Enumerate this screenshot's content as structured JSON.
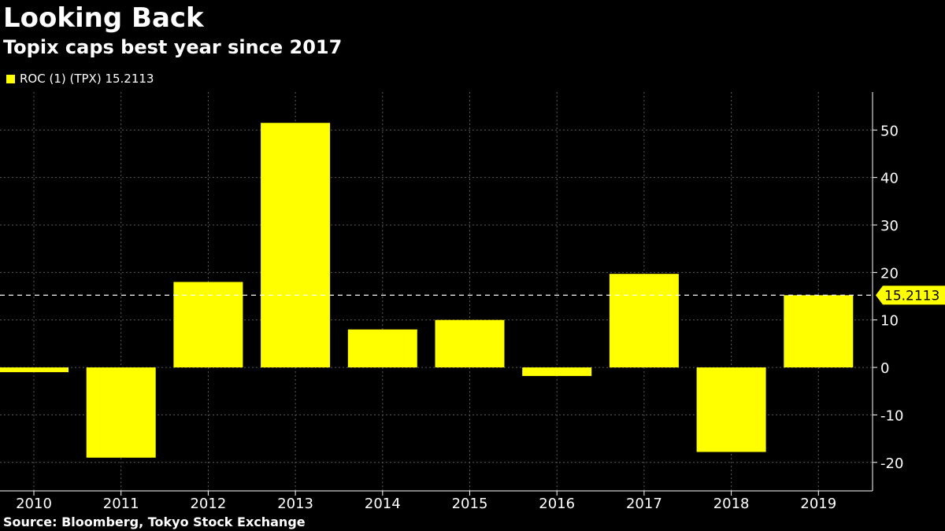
{
  "header": {
    "title": "Looking Back",
    "subtitle": "Topix caps best year since 2017"
  },
  "legend": {
    "label": "ROC (1) (TPX) 15.2113",
    "color": "#ffff00"
  },
  "footer": {
    "source": "Source: Bloomberg, Tokyo Stock Exchange"
  },
  "chart_data": {
    "type": "bar",
    "categories": [
      "2010",
      "2011",
      "2012",
      "2013",
      "2014",
      "2015",
      "2016",
      "2017",
      "2018",
      "2019"
    ],
    "values": [
      -1.0,
      -19.0,
      18.0,
      51.5,
      8.0,
      10.0,
      -1.8,
      19.7,
      -17.8,
      15.2113
    ],
    "series": [
      {
        "name": "ROC (1) (TPX)",
        "color": "#ffff00"
      }
    ],
    "title": "Looking Back",
    "subtitle": "Topix caps best year since 2017",
    "xlabel": "",
    "ylabel": "",
    "ylim": [
      -26,
      58
    ],
    "yticks": [
      -20,
      -10,
      0,
      10,
      20,
      30,
      40,
      50
    ],
    "ytick_labels": [
      "-20",
      "-10",
      "0",
      "10",
      "20",
      "30",
      "40",
      "50"
    ],
    "y_axis_position": "right",
    "grid": true,
    "last_value": 15.2113,
    "last_value_label": "15.2113",
    "reference_line": {
      "value": 15.2113,
      "style": "dashed",
      "color": "#ffffff"
    },
    "legend_position": "top-left",
    "background": "#000000",
    "bar_color": "#ffff00"
  }
}
